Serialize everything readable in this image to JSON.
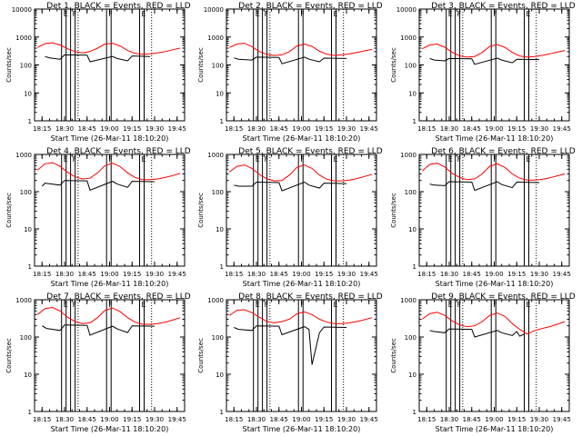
{
  "chart_data": [
    {
      "type": "line",
      "title": "Det 1, BLACK = Events, RED = LLD",
      "xlabel": "Start Time (26-Mar-11 18:10:20)",
      "ylabel": "Counts/sec",
      "xtick_labels": [
        "18:15",
        "18:30",
        "18:45",
        "19:00",
        "19:15",
        "19:30",
        "19:45"
      ],
      "ytick_labels": [
        "1",
        "10",
        "100",
        "1000",
        "10000"
      ],
      "ylim": [
        1,
        10000
      ],
      "yscale": "log",
      "markers": [
        "E",
        "F",
        "F",
        "E"
      ],
      "series": [
        {
          "color": "#ff0000",
          "x": [
            "18:12",
            "18:17",
            "18:22",
            "18:27",
            "18:32",
            "18:37",
            "18:42",
            "18:47",
            "18:52",
            "18:57",
            "19:02",
            "19:07",
            "19:12",
            "19:17",
            "19:22",
            "19:27",
            "19:32",
            "19:37",
            "19:42",
            "19:47"
          ],
          "y": [
            420,
            580,
            620,
            520,
            380,
            300,
            270,
            300,
            400,
            560,
            600,
            480,
            330,
            260,
            240,
            250,
            270,
            300,
            350,
            400
          ]
        },
        {
          "color": "#000000",
          "x": [
            "18:17",
            "18:20",
            "18:27",
            "18:30",
            "18:45",
            "18:47",
            "19:02",
            "19:05",
            "19:12",
            "19:15",
            "19:27"
          ],
          "y": [
            200,
            180,
            160,
            230,
            225,
            130,
            200,
            170,
            140,
            210,
            200
          ]
        }
      ]
    },
    {
      "type": "line",
      "title": "Det 2, BLACK = Events, RED = LLD",
      "xlabel": "Start Time (26-Mar-11 18:10:20)",
      "ylabel": "Counts/sec",
      "xtick_labels": [
        "18:15",
        "18:30",
        "18:45",
        "19:00",
        "19:15",
        "19:30",
        "19:45"
      ],
      "ytick_labels": [
        "1",
        "10",
        "100",
        "1000",
        "10000"
      ],
      "ylim": [
        1,
        10000
      ],
      "yscale": "log",
      "markers": [
        "E",
        "F",
        "F",
        "E"
      ],
      "series": [
        {
          "color": "#ff0000",
          "x": [
            "18:12",
            "18:17",
            "18:22",
            "18:27",
            "18:32",
            "18:37",
            "18:42",
            "18:47",
            "18:52",
            "18:57",
            "19:02",
            "19:07",
            "19:12",
            "19:17",
            "19:22",
            "19:27",
            "19:32",
            "19:37",
            "19:42",
            "19:47"
          ],
          "y": [
            420,
            560,
            600,
            450,
            300,
            240,
            220,
            230,
            300,
            480,
            560,
            460,
            310,
            240,
            220,
            230,
            250,
            280,
            320,
            360
          ]
        },
        {
          "color": "#000000",
          "x": [
            "18:15",
            "18:18",
            "18:27",
            "18:30",
            "18:45",
            "18:47",
            "19:02",
            "19:05",
            "19:12",
            "19:15",
            "19:30"
          ],
          "y": [
            180,
            160,
            150,
            190,
            185,
            110,
            190,
            160,
            130,
            175,
            170
          ]
        }
      ]
    },
    {
      "type": "line",
      "title": "Det 3, BLACK = Events, RED = LLD",
      "xlabel": "Start Time (26-Mar-11 18:10:20)",
      "ylabel": "Counts/sec",
      "xtick_labels": [
        "18:15",
        "18:30",
        "18:45",
        "19:00",
        "19:15",
        "19:30",
        "19:45"
      ],
      "ytick_labels": [
        "1",
        "10",
        "100",
        "1000",
        "10000"
      ],
      "ylim": [
        1,
        10000
      ],
      "yscale": "log",
      "markers": [
        "E",
        "F",
        "F",
        "E"
      ],
      "series": [
        {
          "color": "#ff0000",
          "x": [
            "18:12",
            "18:17",
            "18:22",
            "18:27",
            "18:32",
            "18:37",
            "18:42",
            "18:47",
            "18:52",
            "18:57",
            "19:02",
            "19:07",
            "19:12",
            "19:17",
            "19:22",
            "19:27",
            "19:32",
            "19:37",
            "19:42",
            "19:47"
          ],
          "y": [
            380,
            520,
            560,
            430,
            280,
            210,
            190,
            200,
            280,
            460,
            540,
            430,
            280,
            210,
            190,
            200,
            220,
            250,
            290,
            330
          ]
        },
        {
          "color": "#000000",
          "x": [
            "18:17",
            "18:20",
            "18:27",
            "18:30",
            "18:45",
            "18:47",
            "19:02",
            "19:05",
            "19:12",
            "19:15",
            "19:30"
          ],
          "y": [
            170,
            150,
            140,
            170,
            165,
            105,
            175,
            150,
            120,
            160,
            155
          ]
        }
      ]
    },
    {
      "type": "line",
      "title": "Det 4, BLACK = Events, RED = LLD",
      "xlabel": "Start Time (26-Mar-11 18:10:20)",
      "ylabel": "Counts/sec",
      "xtick_labels": [
        "18:15",
        "18:30",
        "18:45",
        "19:00",
        "19:15",
        "19:30",
        "19:45"
      ],
      "ytick_labels": [
        "1",
        "10",
        "100",
        "1000"
      ],
      "ylim": [
        1,
        1000
      ],
      "yscale": "log",
      "markers": [
        "E",
        "F",
        "F",
        "E"
      ],
      "series": [
        {
          "color": "#ff0000",
          "x": [
            "18:12",
            "18:17",
            "18:22",
            "18:27",
            "18:32",
            "18:37",
            "18:42",
            "18:47",
            "18:52",
            "18:57",
            "19:02",
            "19:07",
            "19:12",
            "19:17",
            "19:22",
            "19:27",
            "19:32",
            "19:37",
            "19:42",
            "19:47"
          ],
          "y": [
            380,
            560,
            600,
            480,
            330,
            250,
            220,
            230,
            320,
            500,
            580,
            470,
            320,
            240,
            210,
            210,
            220,
            240,
            270,
            310
          ]
        },
        {
          "color": "#000000",
          "x": [
            "18:15",
            "18:17",
            "18:27",
            "18:30",
            "18:45",
            "18:47",
            "19:02",
            "19:05",
            "19:12",
            "19:15",
            "19:30"
          ],
          "y": [
            140,
            170,
            150,
            200,
            195,
            110,
            190,
            160,
            130,
            190,
            185
          ]
        }
      ]
    },
    {
      "type": "line",
      "title": "Det 5, BLACK = Events, RED = LLD",
      "xlabel": "Start Time (26-Mar-11 18:10:20)",
      "ylabel": "Counts/sec",
      "xtick_labels": [
        "18:15",
        "18:30",
        "18:45",
        "19:00",
        "19:15",
        "19:30",
        "19:45"
      ],
      "ytick_labels": [
        "1",
        "10",
        "100",
        "1000"
      ],
      "ylim": [
        1,
        1000
      ],
      "yscale": "log",
      "markers": [
        "E",
        "F",
        "F",
        "E"
      ],
      "series": [
        {
          "color": "#ff0000",
          "x": [
            "18:12",
            "18:17",
            "18:22",
            "18:27",
            "18:32",
            "18:37",
            "18:42",
            "18:47",
            "18:52",
            "18:57",
            "19:02",
            "19:07",
            "19:12",
            "19:17",
            "19:22",
            "19:27",
            "19:32",
            "19:37",
            "19:42",
            "19:47"
          ],
          "y": [
            340,
            480,
            520,
            420,
            290,
            220,
            195,
            200,
            280,
            450,
            520,
            420,
            280,
            215,
            195,
            195,
            205,
            225,
            255,
            290
          ]
        },
        {
          "color": "#000000",
          "x": [
            "18:15",
            "18:18",
            "18:27",
            "18:30",
            "18:45",
            "18:47",
            "19:02",
            "19:05",
            "19:12",
            "19:15",
            "19:30"
          ],
          "y": [
            150,
            140,
            140,
            180,
            175,
            105,
            180,
            150,
            125,
            170,
            165
          ]
        }
      ]
    },
    {
      "type": "line",
      "title": "Det 6, BLACK = Events, RED = LLD",
      "xlabel": "Start Time (26-Mar-11 18:10:20)",
      "ylabel": "Counts/sec",
      "xtick_labels": [
        "18:15",
        "18:30",
        "18:45",
        "19:00",
        "19:15",
        "19:30",
        "19:45"
      ],
      "ytick_labels": [
        "1",
        "10",
        "100",
        "1000"
      ],
      "ylim": [
        1,
        1000
      ],
      "yscale": "log",
      "markers": [
        "E",
        "F",
        "F",
        "E"
      ],
      "series": [
        {
          "color": "#ff0000",
          "x": [
            "18:12",
            "18:17",
            "18:22",
            "18:27",
            "18:32",
            "18:37",
            "18:42",
            "18:47",
            "18:52",
            "18:57",
            "19:02",
            "19:07",
            "19:12",
            "19:17",
            "19:22",
            "19:27",
            "19:32",
            "19:37",
            "19:42",
            "19:47"
          ],
          "y": [
            360,
            540,
            580,
            460,
            310,
            240,
            210,
            220,
            300,
            480,
            560,
            450,
            300,
            230,
            205,
            205,
            215,
            235,
            265,
            300
          ]
        },
        {
          "color": "#000000",
          "x": [
            "18:17",
            "18:20",
            "18:27",
            "18:30",
            "18:45",
            "18:47",
            "19:02",
            "19:05",
            "19:12",
            "19:15",
            "19:30"
          ],
          "y": [
            160,
            150,
            145,
            185,
            180,
            108,
            185,
            155,
            128,
            180,
            175
          ]
        }
      ]
    },
    {
      "type": "line",
      "title": "Det 7, BLACK = Events, RED = LLD",
      "xlabel": "Start Time (26-Mar-11 18:10:20)",
      "ylabel": "Counts/sec",
      "xtick_labels": [
        "18:15",
        "18:30",
        "18:45",
        "19:00",
        "19:15",
        "19:30",
        "19:45"
      ],
      "ytick_labels": [
        "1",
        "10",
        "100",
        "1000"
      ],
      "ylim": [
        1,
        1000
      ],
      "yscale": "log",
      "markers": [
        "E",
        "F",
        "F",
        "E"
      ],
      "series": [
        {
          "color": "#ff0000",
          "x": [
            "18:12",
            "18:17",
            "18:22",
            "18:27",
            "18:32",
            "18:37",
            "18:42",
            "18:47",
            "18:52",
            "18:57",
            "19:02",
            "19:07",
            "19:12",
            "19:17",
            "19:22",
            "19:27",
            "19:32",
            "19:37",
            "19:42",
            "19:47"
          ],
          "y": [
            400,
            580,
            620,
            500,
            340,
            260,
            230,
            240,
            330,
            520,
            600,
            480,
            330,
            250,
            220,
            220,
            230,
            250,
            285,
            330
          ]
        },
        {
          "color": "#000000",
          "x": [
            "18:15",
            "18:18",
            "18:27",
            "18:30",
            "18:45",
            "18:47",
            "19:02",
            "19:05",
            "19:12",
            "19:15",
            "19:30"
          ],
          "y": [
            200,
            170,
            150,
            210,
            205,
            112,
            195,
            165,
            132,
            200,
            195
          ]
        }
      ]
    },
    {
      "type": "line",
      "title": "Det 8, BLACK = Events, RED = LLD",
      "xlabel": "Start Time (26-Mar-11 18:10:20)",
      "ylabel": "Counts/sec",
      "xtick_labels": [
        "18:15",
        "18:30",
        "18:45",
        "19:00",
        "19:15",
        "19:30",
        "19:45"
      ],
      "ytick_labels": [
        "1",
        "10",
        "100",
        "1000"
      ],
      "ylim": [
        1,
        1000
      ],
      "yscale": "log",
      "markers": [
        "E",
        "F",
        "F",
        "E"
      ],
      "series": [
        {
          "color": "#ff0000",
          "x": [
            "18:12",
            "18:17",
            "18:22",
            "18:27",
            "18:32",
            "18:37",
            "18:42",
            "18:47",
            "18:52",
            "18:57",
            "19:02",
            "19:07",
            "19:12",
            "19:17",
            "19:22",
            "19:27",
            "19:32",
            "19:37",
            "19:42",
            "19:47"
          ],
          "y": [
            380,
            520,
            540,
            450,
            340,
            260,
            240,
            260,
            300,
            420,
            470,
            400,
            300,
            250,
            230,
            230,
            240,
            260,
            290,
            330
          ]
        },
        {
          "color": "#000000",
          "x": [
            "18:15",
            "18:18",
            "18:27",
            "18:30",
            "18:45",
            "18:47",
            "19:02",
            "19:05",
            "19:07",
            "19:12",
            "19:15",
            "19:30"
          ],
          "y": [
            180,
            160,
            150,
            200,
            195,
            115,
            190,
            160,
            18,
            130,
            185,
            180
          ]
        }
      ]
    },
    {
      "type": "line",
      "title": "Det 9, BLACK = Events, RED = LLD",
      "xlabel": "Start Time (26-Mar-11 18:10:20)",
      "ylabel": "Counts/sec",
      "xtick_labels": [
        "18:15",
        "18:30",
        "18:45",
        "19:00",
        "19:15",
        "19:30",
        "19:45"
      ],
      "ytick_labels": [
        "1",
        "10",
        "100",
        "1000"
      ],
      "ylim": [
        1,
        1000
      ],
      "yscale": "log",
      "markers": [
        "E",
        "F",
        "F",
        "E"
      ],
      "series": [
        {
          "color": "#ff0000",
          "x": [
            "18:12",
            "18:17",
            "18:22",
            "18:27",
            "18:32",
            "18:37",
            "18:42",
            "18:47",
            "18:52",
            "18:57",
            "19:02",
            "19:07",
            "19:12",
            "19:17",
            "19:22",
            "19:27",
            "19:32",
            "19:37",
            "19:42",
            "19:47"
          ],
          "y": [
            300,
            420,
            460,
            380,
            270,
            210,
            190,
            200,
            260,
            380,
            440,
            360,
            230,
            160,
            120,
            150,
            170,
            190,
            220,
            260
          ]
        },
        {
          "color": "#000000",
          "x": [
            "18:17",
            "18:20",
            "18:27",
            "18:30",
            "18:45",
            "18:47",
            "19:02",
            "19:05",
            "19:12",
            "19:15",
            "19:17",
            "19:20"
          ],
          "y": [
            150,
            140,
            130,
            165,
            160,
            100,
            150,
            130,
            110,
            140,
            105,
            120
          ]
        }
      ]
    }
  ]
}
